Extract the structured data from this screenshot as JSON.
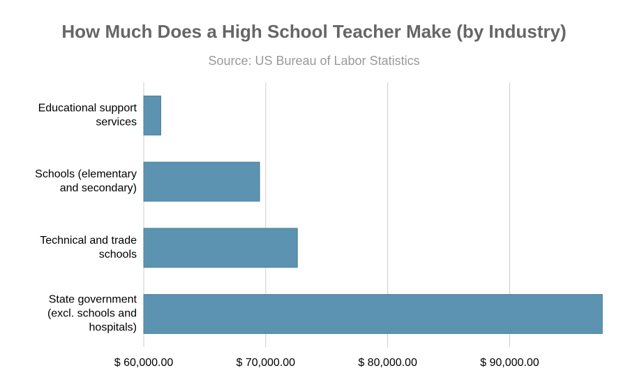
{
  "chart_data": {
    "type": "bar",
    "orientation": "horizontal",
    "title": "How Much Does a High School Teacher Make (by Industry)",
    "subtitle": "Source: US Bureau of Labor Statistics",
    "categories": [
      "Educational support services",
      "Schools (elementary and secondary)",
      "Technical and trade schools",
      "State government (excl. schools and hospitals)"
    ],
    "values": [
      61400,
      69500,
      72600,
      97600
    ],
    "color": "#5b93b0",
    "xlim": [
      60000,
      97700
    ],
    "xticks": [
      {
        "value": 60000,
        "label": "$ 60,000.00"
      },
      {
        "value": 70000,
        "label": "$ 70,000.00"
      },
      {
        "value": 80000,
        "label": "$ 80,000.00"
      },
      {
        "value": 90000,
        "label": "$ 90,000.00"
      }
    ],
    "grid": true
  }
}
